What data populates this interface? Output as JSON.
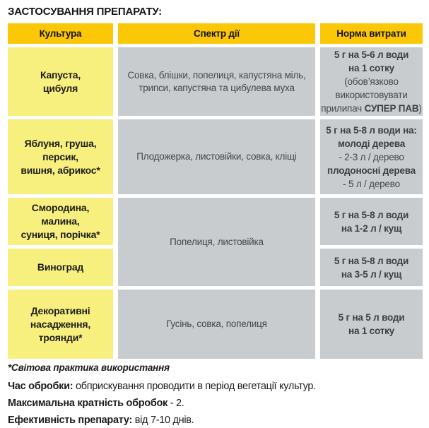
{
  "title": "ЗАСТОСУВАННЯ ПРЕПАРАТУ:",
  "colors": {
    "header_gold": "#FCC707",
    "culture_yellow": "#F8F07E",
    "cell_gray": "#C9CCCE",
    "dark_text": "#1D1C1A",
    "gray_cell_text": "#43474A"
  },
  "table": {
    "headers": [
      "Культура",
      "Спектр дії",
      "Норма витрати"
    ],
    "rows": [
      {
        "culture": [
          "Капуста,",
          "цибуля"
        ],
        "spectrum": [
          "Совка, блішки, попелиця, капустяна міль,",
          "трипси, капустяна та цибулева муха"
        ],
        "rate": [
          [
            {
              "text": "5 г на 5-6 л води",
              "bold": true
            }
          ],
          [
            {
              "text": "на 1 сотку",
              "bold": true
            }
          ],
          [
            {
              "text": "(обов’язково",
              "bold": false
            }
          ],
          [
            {
              "text": "використовувати",
              "bold": false
            }
          ],
          [
            {
              "text": "прилипач ",
              "bold": false
            },
            {
              "text": "СУПЕР ПАВ",
              "bold": true
            },
            {
              "text": ")",
              "bold": false
            }
          ]
        ]
      },
      {
        "culture": [
          "Яблуня, груша,",
          "персик,",
          "вишня, абрикос*"
        ],
        "spectrum": [
          "Плодожерка, листовійки, совка, кліщі"
        ],
        "rate": [
          [
            {
              "text": "5 г на 5-8 л води на:",
              "bold": true
            }
          ],
          [
            {
              "text": "молоді дерева",
              "bold": true
            }
          ],
          [
            {
              "text": "- 2-3 л / дерево",
              "bold": false
            }
          ],
          [
            {
              "text": "плодоносні дерева",
              "bold": true
            }
          ],
          [
            {
              "text": "- 5 л / дерево",
              "bold": false
            }
          ]
        ]
      },
      {
        "culture": [
          "Смородина,",
          "малина,",
          "суниця, порічка*"
        ],
        "spectrum": [
          "Попелиця, листовійка"
        ],
        "spectrum_rowspan": 2,
        "rate": [
          [
            {
              "text": "5 г на 5-8 л води",
              "bold": true
            }
          ],
          [
            {
              "text": "на 1-2 л / кущ",
              "bold": true
            }
          ]
        ]
      },
      {
        "culture": [
          "Виноград"
        ],
        "spectrum": null,
        "rate": [
          [
            {
              "text": "5 г на 5-8 л води",
              "bold": true
            }
          ],
          [
            {
              "text": "на 3-5 л / кущ",
              "bold": true
            }
          ]
        ]
      },
      {
        "culture": [
          "Декоративні",
          "насадження,",
          "троянди*"
        ],
        "spectrum": [
          "Гусінь, совка, попелиця"
        ],
        "rate": [
          [
            {
              "text": "5 г на 5 л води",
              "bold": true
            }
          ],
          [
            {
              "text": "на 1 сотку",
              "bold": true
            }
          ]
        ]
      }
    ]
  },
  "footer": {
    "note": "*Світова практика використання",
    "lines": [
      {
        "bold": "Час обробки:",
        "rest": " обприскування проводити в період вегетації культур."
      },
      {
        "bold": "Максимальна кратність обробок",
        "rest": " - 2."
      },
      {
        "bold": "Ефективність препарату:",
        "rest": " від 7-10 днів."
      }
    ]
  }
}
